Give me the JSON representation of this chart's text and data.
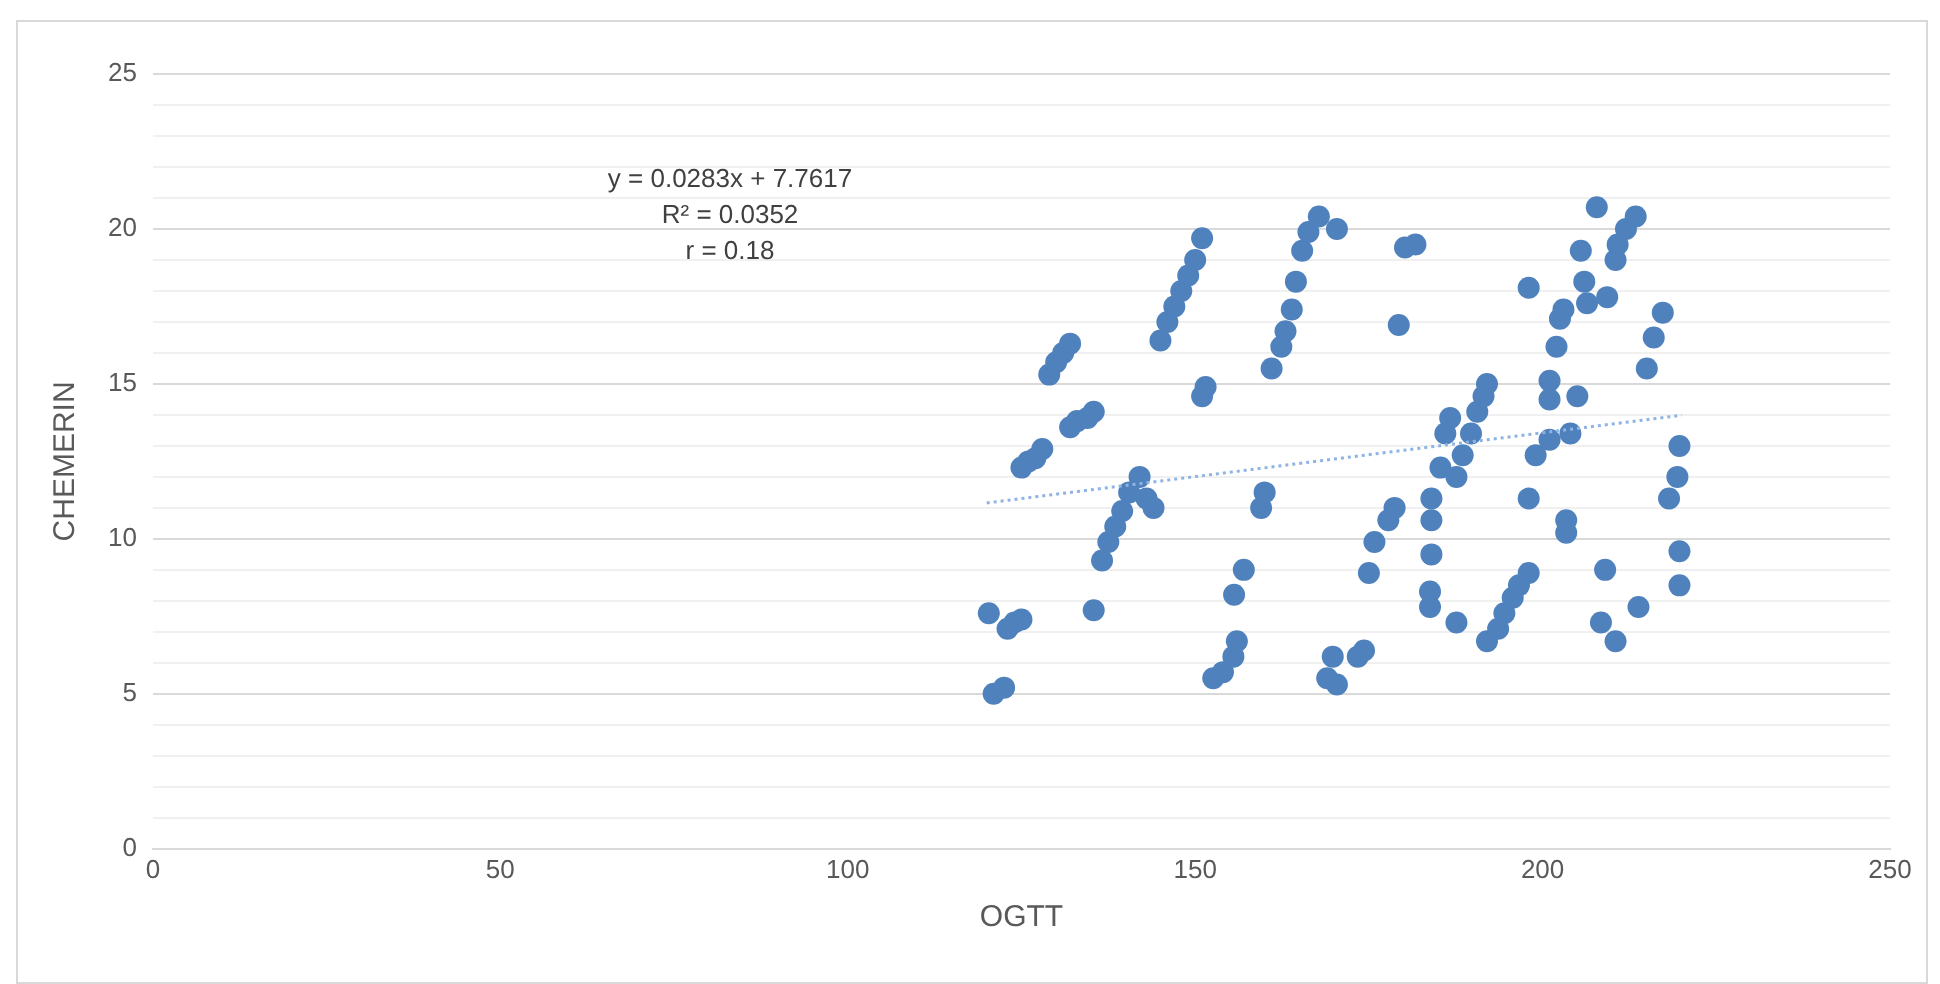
{
  "chart_data": {
    "type": "scatter",
    "xlabel": "OGTT",
    "ylabel": "CHEMERIN",
    "x": [
      120.3,
      121,
      122.5,
      123,
      124,
      125,
      125,
      126,
      127,
      128,
      129,
      130,
      131,
      132,
      132,
      133,
      134.5,
      135.4,
      135.4,
      136.6,
      137.5,
      138.5,
      139.5,
      140.5,
      142,
      143,
      144,
      145,
      146,
      147,
      148,
      149,
      150,
      151,
      151,
      151.5,
      152.6,
      154,
      155.5,
      156,
      155.6,
      157,
      159.5,
      160,
      161,
      162.4,
      163,
      163.9,
      164.5,
      165.4,
      166.3,
      167.8,
      170.4,
      169,
      170.4,
      169.8,
      173.4,
      174.3,
      175,
      175.8,
      177.8,
      178.7,
      179.3,
      180.2,
      181.7,
      184,
      184,
      184,
      183.8,
      183.8,
      185.3,
      186,
      186.7,
      187.6,
      187.6,
      188.5,
      189.7,
      190.6,
      191.5,
      192,
      192,
      193.6,
      194.5,
      195.7,
      196.6,
      198,
      198,
      198,
      199,
      201,
      204,
      201,
      201,
      202,
      202.5,
      203,
      205,
      205.5,
      206,
      206.4,
      209.3,
      203.4,
      203.4,
      207.8,
      210.5,
      210.8,
      212,
      213.4,
      209,
      208.4,
      210.5,
      213.8,
      215,
      216,
      217.3,
      219.7,
      219.4,
      218.2,
      219.7,
      219.7
    ],
    "series": [
      {
        "color": "#4f81bd",
        "marker": "circle",
        "values": [
          7.6,
          5.0,
          5.2,
          7.1,
          7.3,
          7.4,
          12.3,
          12.5,
          12.6,
          12.9,
          15.3,
          15.7,
          16.0,
          16.3,
          13.6,
          13.8,
          13.9,
          14.1,
          7.7,
          9.3,
          9.9,
          10.4,
          10.9,
          11.5,
          12.0,
          11.3,
          11.0,
          16.4,
          17.0,
          17.5,
          18.0,
          18.5,
          19.0,
          19.7,
          14.6,
          14.9,
          5.5,
          5.7,
          6.2,
          6.7,
          8.2,
          9.0,
          11.0,
          11.5,
          15.5,
          16.2,
          16.7,
          17.4,
          18.3,
          19.3,
          19.9,
          20.4,
          20.0,
          5.5,
          5.3,
          6.2,
          6.2,
          6.4,
          8.9,
          9.9,
          10.6,
          11.0,
          16.9,
          19.4,
          19.5,
          11.3,
          10.6,
          9.5,
          8.3,
          7.8,
          12.3,
          13.4,
          13.9,
          7.3,
          12.0,
          12.7,
          13.4,
          14.1,
          14.6,
          15.0,
          6.7,
          7.1,
          7.6,
          8.1,
          8.5,
          8.9,
          18.1,
          11.3,
          12.7,
          13.2,
          13.4,
          15.1,
          14.5,
          16.2,
          17.1,
          17.4,
          14.6,
          19.3,
          18.3,
          17.6,
          17.8,
          10.6,
          10.2,
          20.7,
          19.0,
          19.5,
          20.0,
          20.4,
          9.0,
          7.3,
          6.7,
          7.8,
          15.5,
          16.5,
          17.3,
          13.0,
          12.0,
          11.3,
          9.6,
          8.5
        ]
      },
      {
        "type": "line",
        "color": "#8eb4e3",
        "line_style": "dotted",
        "marker": "none",
        "x": [
          120,
          220
        ],
        "values": [
          11.16,
          13.99
        ]
      }
    ],
    "xlim": [
      0,
      250
    ],
    "xticks": [
      0,
      50,
      100,
      150,
      200,
      250
    ],
    "ylim": [
      0,
      25
    ],
    "yticks": [
      0,
      {
        "value": 1,
        "label": null
      },
      {
        "value": 2,
        "label": null
      },
      {
        "value": 3,
        "label": null
      },
      {
        "value": 4,
        "label": null
      },
      5,
      {
        "value": 6,
        "label": null
      },
      {
        "value": 7,
        "label": null
      },
      {
        "value": 8,
        "label": null
      },
      {
        "value": 9,
        "label": null
      },
      10,
      {
        "value": 11,
        "label": null
      },
      {
        "value": 12,
        "label": null
      },
      {
        "value": 13,
        "label": null
      },
      {
        "value": 14,
        "label": null
      },
      15,
      {
        "value": 16,
        "label": null
      },
      {
        "value": 17,
        "label": null
      },
      {
        "value": 18,
        "label": null
      },
      {
        "value": 19,
        "label": null
      },
      20,
      {
        "value": 21,
        "label": null
      },
      {
        "value": 22,
        "label": null
      },
      {
        "value": 23,
        "label": null
      },
      {
        "value": 24,
        "label": null
      },
      25
    ],
    "grid": "y",
    "legend": false,
    "annotations": [
      "y = 0.0283x + 7.7617",
      "R² = 0.0352",
      "r = 0.18"
    ]
  }
}
